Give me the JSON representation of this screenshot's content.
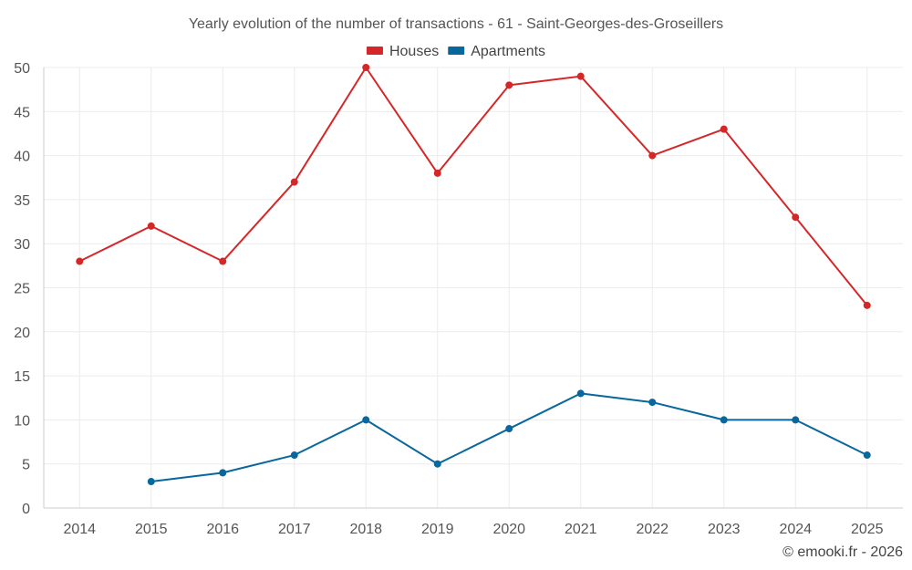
{
  "chart_data": {
    "type": "line",
    "title": "Yearly evolution of the number of transactions - 61 - Saint-Georges-des-Groseillers",
    "categories": [
      "2014",
      "2015",
      "2016",
      "2017",
      "2018",
      "2019",
      "2020",
      "2021",
      "2022",
      "2023",
      "2024",
      "2025"
    ],
    "series": [
      {
        "name": "Houses",
        "color": "#d62728",
        "values": [
          28,
          32,
          28,
          37,
          50,
          38,
          48,
          49,
          40,
          43,
          33,
          23
        ]
      },
      {
        "name": "Apartments",
        "color": "#08679c",
        "values": [
          null,
          3,
          4,
          6,
          10,
          5,
          9,
          13,
          12,
          10,
          10,
          6
        ]
      }
    ],
    "yticks": [
      0,
      5,
      10,
      15,
      20,
      25,
      30,
      35,
      40,
      45,
      50
    ],
    "ylim": [
      0,
      50
    ],
    "xlabel": "",
    "ylabel": "",
    "grid": true,
    "legend": "top-center"
  },
  "credit": "© emooki.fr - 2026"
}
